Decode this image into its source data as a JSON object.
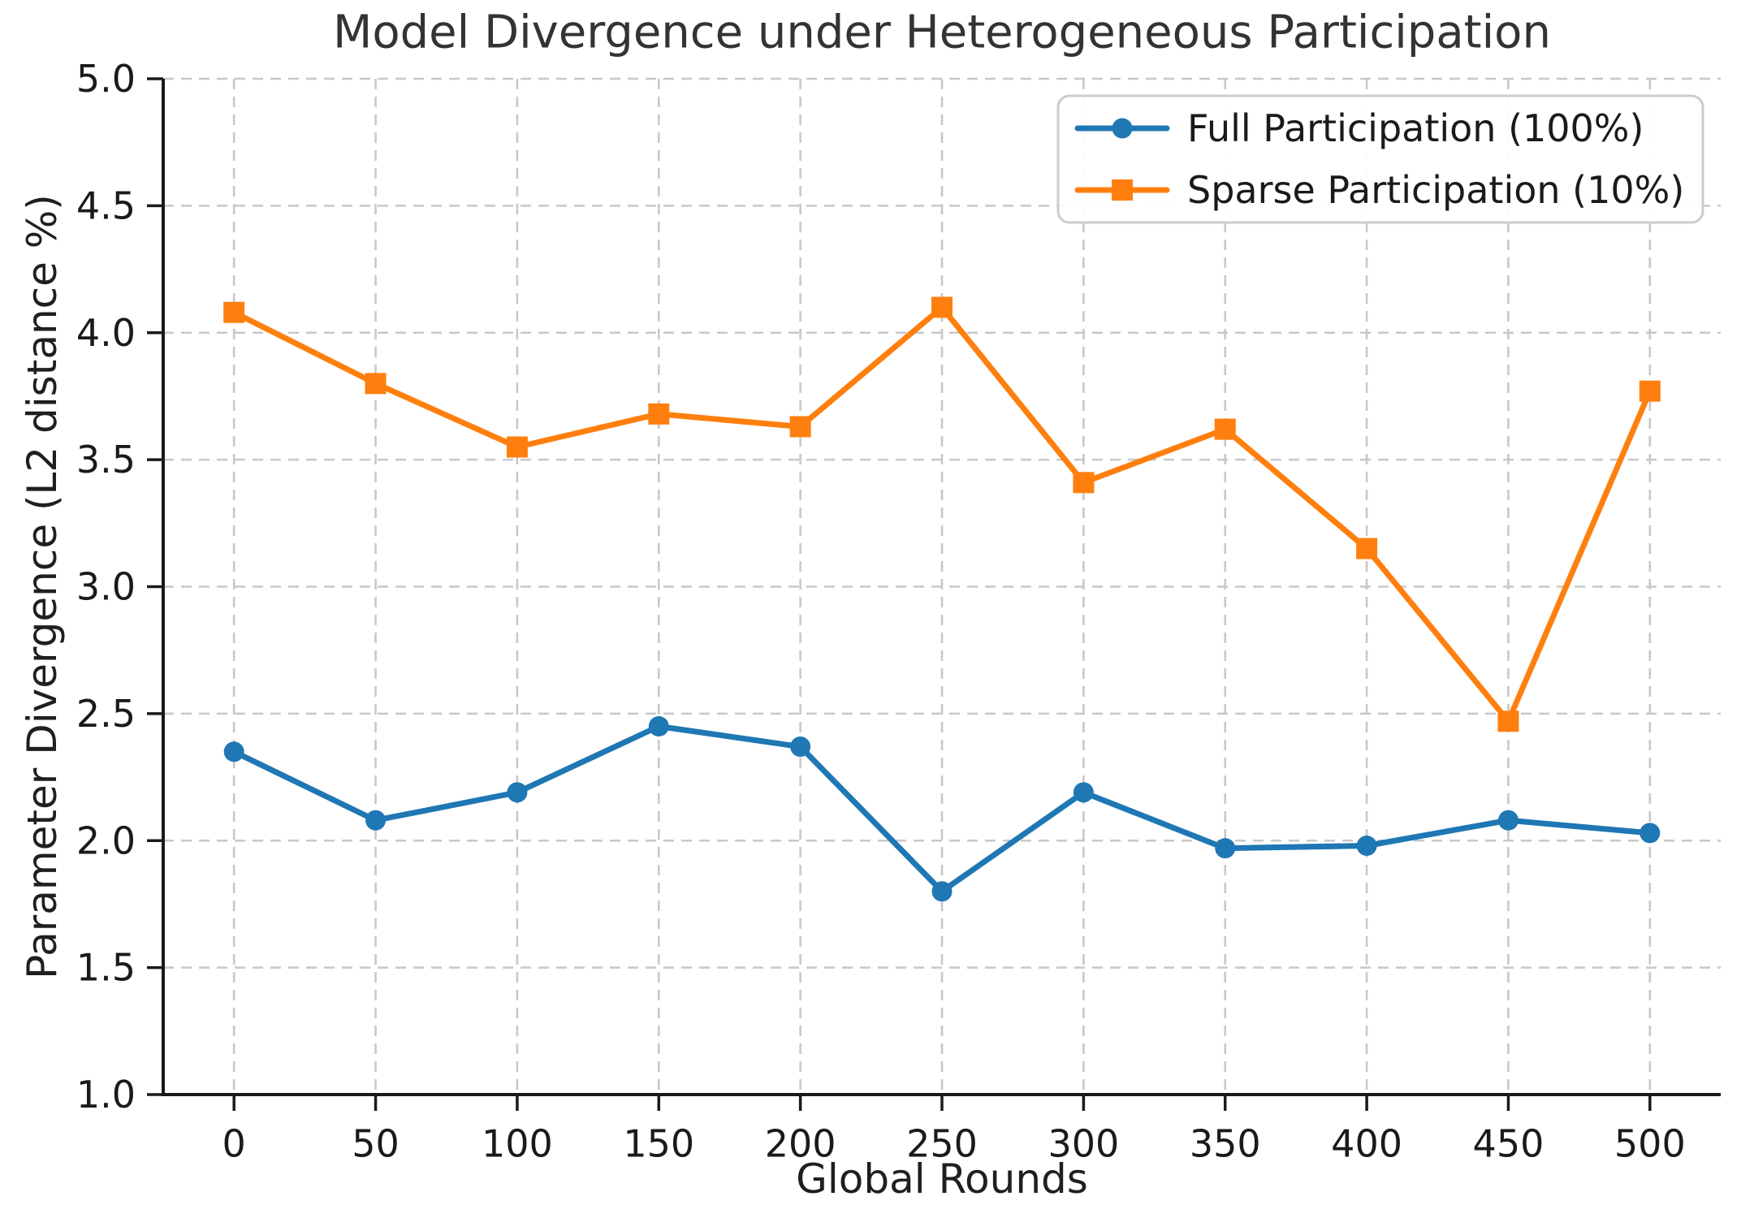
{
  "chart_data": {
    "type": "line",
    "title": "Model Divergence under Heterogeneous Participation",
    "xlabel": "Global Rounds",
    "ylabel": "Parameter Divergence (L2 distance %)",
    "x": [
      0,
      50,
      100,
      150,
      200,
      250,
      300,
      350,
      400,
      450,
      500
    ],
    "series": [
      {
        "name": "Full Participation (100%)",
        "color": "#1f77b4",
        "marker": "circle",
        "values": [
          2.35,
          2.08,
          2.19,
          2.45,
          2.37,
          1.8,
          2.19,
          1.97,
          1.98,
          2.08,
          2.03
        ]
      },
      {
        "name": "Sparse Participation (10%)",
        "color": "#ff7f0e",
        "marker": "square",
        "values": [
          4.08,
          3.8,
          3.55,
          3.68,
          3.63,
          4.1,
          3.41,
          3.62,
          3.15,
          2.47,
          3.77
        ]
      }
    ],
    "xlim": [
      -25,
      525
    ],
    "ylim": [
      1.0,
      5.0
    ],
    "xticks": [
      0,
      50,
      100,
      150,
      200,
      250,
      300,
      350,
      400,
      450,
      500
    ],
    "yticks": [
      1.0,
      1.5,
      2.0,
      2.5,
      3.0,
      3.5,
      4.0,
      4.5,
      5.0
    ],
    "ytick_labels": [
      "1.0",
      "1.5",
      "2.0",
      "2.5",
      "3.0",
      "3.5",
      "4.0",
      "4.5",
      "5.0"
    ],
    "grid": true,
    "grid_style": "dashed",
    "legend_position": "upper right"
  },
  "style": {
    "background": "#ffffff",
    "grid_color": "#c8c8c8",
    "axis_color": "#1a1a1a",
    "tick_text_color": "#1a1a1a",
    "title_color": "#333333",
    "label_color": "#1f1f1f",
    "legend_border_color": "#cccccc",
    "legend_fill": "#ffffff"
  }
}
